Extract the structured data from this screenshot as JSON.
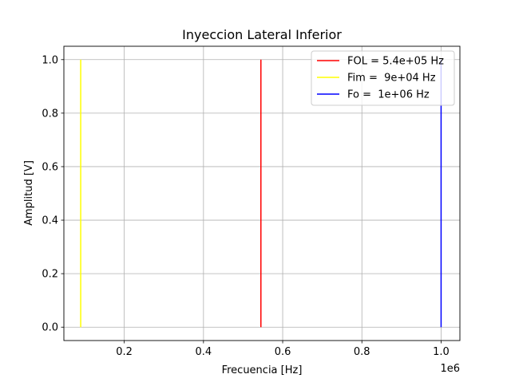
{
  "chart_data": {
    "type": "line",
    "title": "Inyeccion Lateral Inferior",
    "xlabel": "Frecuencia [Hz]",
    "ylabel": "Amplitud [V]",
    "x_offset_label": "1e6",
    "xlim": [
      0.0475,
      1.0475
    ],
    "ylim": [
      -0.05,
      1.05
    ],
    "grid": true,
    "legend_position": "top-right",
    "x_ticks": [
      {
        "value": 0.2,
        "label": "0.2"
      },
      {
        "value": 0.4,
        "label": "0.4"
      },
      {
        "value": 0.6,
        "label": "0.6"
      },
      {
        "value": 0.8,
        "label": "0.8"
      },
      {
        "value": 1.0,
        "label": "1.0"
      }
    ],
    "y_ticks": [
      {
        "value": 0.0,
        "label": "0.0"
      },
      {
        "value": 0.2,
        "label": "0.2"
      },
      {
        "value": 0.4,
        "label": "0.4"
      },
      {
        "value": 0.6,
        "label": "0.6"
      },
      {
        "value": 0.8,
        "label": "0.8"
      },
      {
        "value": 1.0,
        "label": "1.0"
      }
    ],
    "series": [
      {
        "name": "FOL = 5.4e+05 Hz",
        "color": "#ff0000",
        "x": [
          0.545,
          0.545
        ],
        "y": [
          0,
          1
        ]
      },
      {
        "name": "Fim =  9e+04 Hz",
        "color": "#ffff00",
        "x": [
          0.09,
          0.09
        ],
        "y": [
          0,
          1
        ]
      },
      {
        "name": "Fo =  1e+06 Hz",
        "color": "#0000ff",
        "x": [
          1.0,
          1.0
        ],
        "y": [
          0,
          1
        ]
      }
    ]
  }
}
